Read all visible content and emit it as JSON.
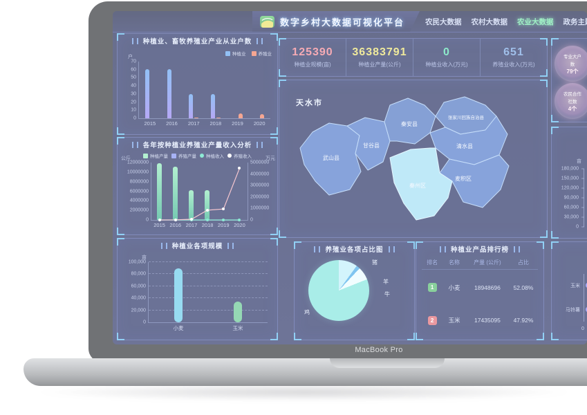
{
  "device": {
    "label": "MacBook Pro"
  },
  "header": {
    "title": "数字乡村大数据可视化平台",
    "active_color": "#6fe8a8",
    "nav": [
      {
        "label": "农民大数据",
        "active": false
      },
      {
        "label": "农村大数据",
        "active": false
      },
      {
        "label": "农业大数据",
        "active": true
      },
      {
        "label": "政务主题",
        "active": false
      }
    ]
  },
  "stats": {
    "items": [
      {
        "value": "125390",
        "label": "种植业规模(亩)",
        "color": "#f2808f"
      },
      {
        "value": "36383791",
        "label": "种植业产量(公斤)",
        "color": "#e8e06a"
      },
      {
        "value": "0",
        "label": "种植业收入(万元)",
        "color": "#52e0b0"
      },
      {
        "value": "651",
        "label": "养殖业收入(万元)",
        "color": "#6f9fe0"
      }
    ]
  },
  "map": {
    "city": "天水市",
    "regions": [
      "武山县",
      "甘谷县",
      "秦安县",
      "张家川回族自治县",
      "清水县",
      "秦州区",
      "麦积区"
    ],
    "highlighted_region": "秦州区"
  },
  "right_sidebar": {
    "badges": [
      {
        "line1": "专业大户",
        "line2": "数",
        "line3": "79个"
      },
      {
        "line1": "农民合作",
        "line2": "社数",
        "line3": "4个"
      }
    ],
    "scale_axis": {
      "unit": "亩",
      "yticks": [
        "180,000",
        "150,000",
        "120,000",
        "90,000",
        "60,000",
        "30,000",
        "0"
      ]
    },
    "hbar": {
      "categories": [
        "玉米",
        "马铃薯"
      ],
      "origin_label": "0"
    }
  },
  "chart_data": [
    {
      "id": "households",
      "type": "bar",
      "title": "种植业、畜牧养殖业产业从业户数",
      "unit": "户",
      "categories": [
        "2015",
        "2016",
        "2017",
        "2018",
        "2019",
        "2020"
      ],
      "series": [
        {
          "name": "种植业",
          "color": "#5aa0f0",
          "color2": "#8f7cf0",
          "values": [
            61,
            61,
            30,
            30,
            0,
            0
          ]
        },
        {
          "name": "养殖业",
          "color": "#f0785a",
          "color2": "#f0785a",
          "values": [
            0,
            0,
            1,
            1,
            6,
            5
          ]
        }
      ],
      "ylim": [
        0,
        70
      ],
      "yticks": [
        0,
        10,
        20,
        30,
        40,
        50,
        60,
        70
      ],
      "legend_position": "top-right",
      "grid": false
    },
    {
      "id": "yearly",
      "type": "bar+line",
      "title": "各年按种植业养殖业产量收入分析",
      "left_unit": "公斤",
      "right_unit": "万元",
      "categories": [
        "2015",
        "2016",
        "2017",
        "2018",
        "2019",
        "2020"
      ],
      "series": [
        {
          "name": "种植产量",
          "type": "bar",
          "axis": "left",
          "color": "#8ae8b8",
          "color2": "#2fae8a",
          "values": [
            11800000,
            11200000,
            6200000,
            6200000,
            0,
            0
          ]
        },
        {
          "name": "养殖产量",
          "type": "bar",
          "axis": "left",
          "color": "#7a8af0",
          "color2": "#7a8af0",
          "values": [
            0,
            0,
            0,
            0,
            0,
            0
          ]
        },
        {
          "name": "种植收入",
          "type": "line",
          "axis": "right",
          "color": "#52e0c0",
          "marker": "#52e0c0",
          "values": [
            0,
            0,
            0,
            0,
            0,
            0
          ]
        },
        {
          "name": "养殖收入",
          "type": "line",
          "axis": "right",
          "color": "#f2aab8",
          "marker": "#ffffff",
          "values": [
            0,
            10000,
            60000,
            850000,
            950000,
            4500000
          ]
        }
      ],
      "left_ylim": [
        0,
        12000000
      ],
      "left_yticks": [
        0,
        2000000,
        4000000,
        6000000,
        8000000,
        10000000,
        12000000
      ],
      "right_ylim": [
        0,
        5000000
      ],
      "right_yticks": [
        0,
        1000000,
        2000000,
        3000000,
        4000000,
        5000000
      ],
      "legend_position": "top",
      "grid": false
    },
    {
      "id": "planting_scale",
      "type": "bar",
      "title": "种植业各项规模",
      "unit": "亩",
      "categories": [
        "小麦",
        "玉米"
      ],
      "series": [
        {
          "name": "规模",
          "values": [
            90000,
            35000
          ],
          "colors": [
            "#62c8ea",
            "#5ec48e"
          ]
        }
      ],
      "ylim": [
        0,
        100000
      ],
      "yticks": [
        "0",
        "20,000",
        "40,000",
        "60,000",
        "80,000",
        "100,000"
      ],
      "grid": "dashed"
    },
    {
      "id": "breeding_pie",
      "type": "pie",
      "title": "养殖业各项占比图",
      "slices": [
        {
          "label": "猪",
          "value": 10,
          "color": "#bdeffb"
        },
        {
          "label": "羊",
          "value": 2,
          "color": "#3fa8e8"
        },
        {
          "label": "牛",
          "value": 7,
          "color": "#eafcff"
        },
        {
          "label": "鸡",
          "value": 81,
          "color": "#7de4dc"
        }
      ]
    },
    {
      "id": "product_ranking",
      "type": "table",
      "title": "种植业产品排行榜",
      "headers": [
        "排名",
        "名称",
        "产量 (公斤)",
        "占比"
      ],
      "rows": [
        {
          "rank": "1",
          "badge_color": "#4db86a",
          "name": "小麦",
          "output": "18948696",
          "share": "52.08%"
        },
        {
          "rank": "2",
          "badge_color": "#e06570",
          "name": "玉米",
          "output": "17435095",
          "share": "47.92%"
        }
      ]
    }
  ]
}
